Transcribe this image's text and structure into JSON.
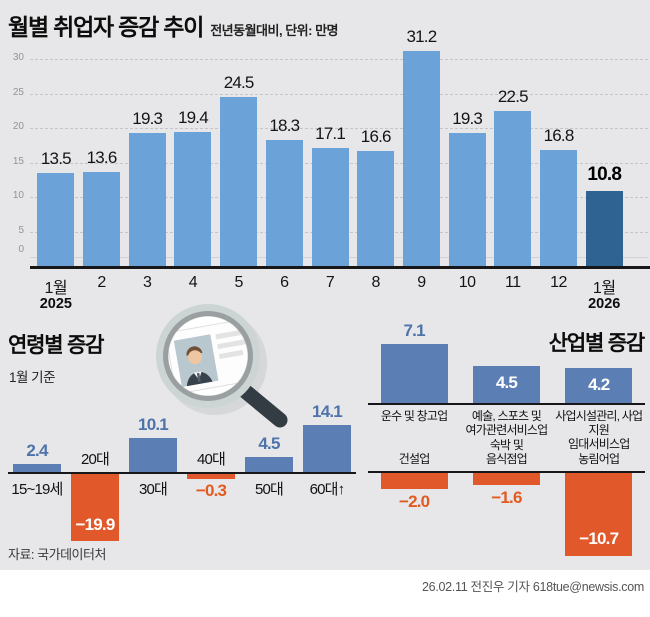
{
  "header": {
    "title": "월별 취업자 증감 추이",
    "subtitle": "전년동월대비, 단위: 만명"
  },
  "chart_data": [
    {
      "id": "monthly-employment",
      "type": "bar",
      "title": "월별 취업자 증감 추이",
      "unit_note": "전년동월대비, 단위: 만명",
      "categories": [
        "1월",
        "2",
        "3",
        "4",
        "5",
        "6",
        "7",
        "8",
        "9",
        "10",
        "11",
        "12",
        "1월"
      ],
      "year_labels": {
        "0": "2025",
        "12": "2026"
      },
      "values": [
        13.5,
        13.6,
        19.3,
        19.4,
        24.5,
        18.3,
        17.1,
        16.6,
        31.2,
        19.3,
        22.5,
        16.8,
        10.8
      ],
      "value_labels": [
        "13.5",
        "13.6",
        "19.3",
        "19.4",
        "24.5",
        "18.3",
        "17.1",
        "16.6",
        "31.2",
        "19.3",
        "22.5",
        "16.8",
        "10.8"
      ],
      "highlight_index": 12,
      "ylim": [
        0,
        30
      ],
      "yticks": [
        0,
        5,
        10,
        15,
        20,
        25,
        30
      ],
      "grid": true,
      "legend": "none"
    },
    {
      "id": "by-age",
      "type": "bar",
      "title": "연령별 증감",
      "subtitle": "1월 기준",
      "categories": [
        "15~19세",
        "20대",
        "30대",
        "40대",
        "50대",
        "60대↑"
      ],
      "values": [
        2.4,
        -19.9,
        10.1,
        -0.3,
        4.5,
        14.1
      ],
      "value_labels": [
        "2.4",
        "−19.9",
        "10.1",
        "−0.3",
        "4.5",
        "14.1"
      ],
      "value_positions": [
        "above",
        "inside-end",
        "above",
        "below",
        "above",
        "above"
      ],
      "grid": false
    },
    {
      "id": "by-industry-positive",
      "type": "bar",
      "title": "산업별 증감",
      "categories": [
        [
          "운수 및 창고업"
        ],
        [
          "예술, 스포츠 및",
          "여가관련서비스업"
        ],
        [
          "사업시설관리, 사업지원",
          "임대서비스업"
        ]
      ],
      "values": [
        7.1,
        4.5,
        4.2
      ],
      "value_labels": [
        "7.1",
        "4.5",
        "4.2"
      ],
      "value_positions": [
        "above",
        "inside",
        "inside"
      ],
      "grid": false
    },
    {
      "id": "by-industry-negative",
      "type": "bar",
      "categories": [
        [
          "건설업"
        ],
        [
          "숙박 및",
          "음식점업"
        ],
        [
          "농림어업"
        ]
      ],
      "values": [
        -2.0,
        -1.6,
        -10.7
      ],
      "value_labels": [
        "−2.0",
        "−1.6",
        "−10.7"
      ],
      "value_positions": [
        "below",
        "below",
        "inside-end"
      ],
      "grid": false
    }
  ],
  "illustration": {
    "name": "magnifier-over-resume"
  },
  "footer": {
    "source": "자료: 국가데이터처",
    "credit": "26.02.11 전진우 기자 618tue@newsis.com"
  },
  "colors": {
    "background": "#e7e7e9",
    "bar_light_blue": "#6ba3d8",
    "bar_dark_blue": "#2f6391",
    "bar_steel_blue": "#5b7eb5",
    "bar_orange": "#e1582a",
    "value_blue": "#4e73ab",
    "value_orange": "#e25a20",
    "axis_black": "#17171a"
  }
}
